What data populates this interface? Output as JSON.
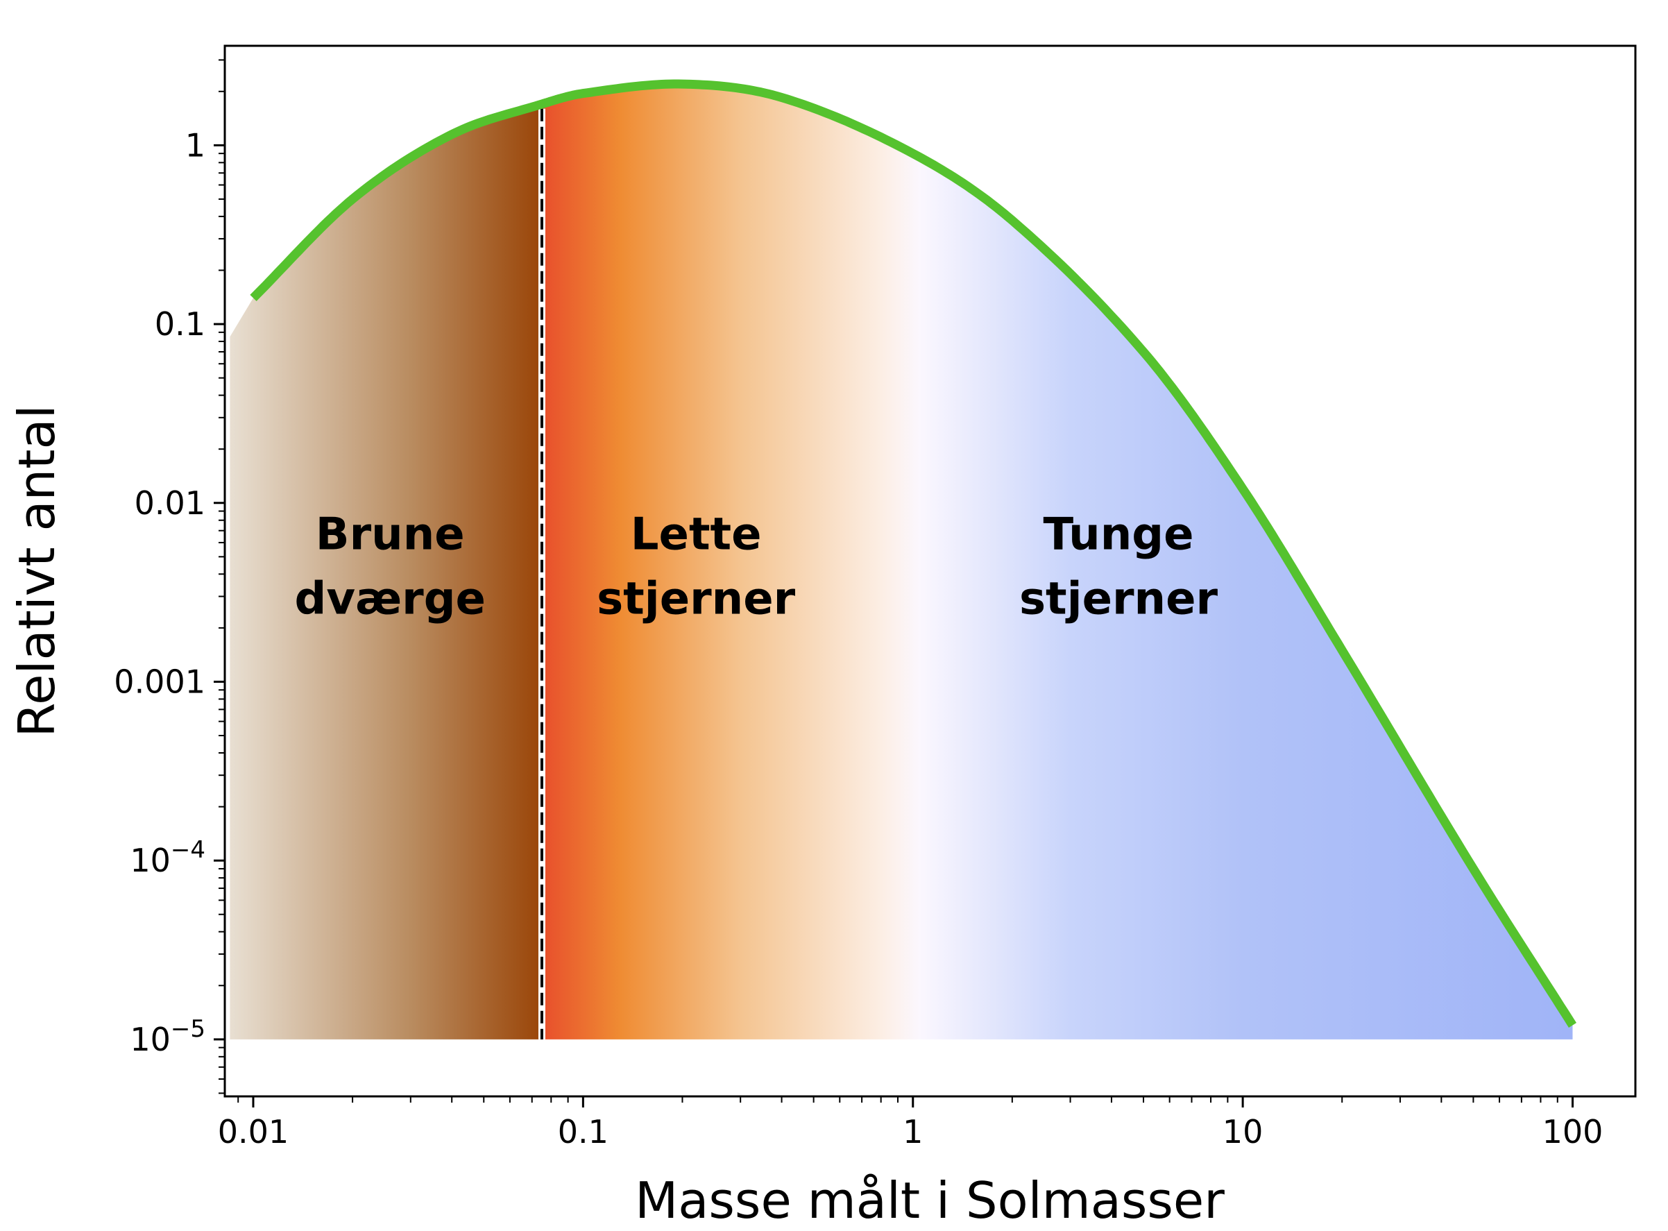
{
  "chart_data": {
    "type": "area",
    "title": "",
    "xlabel": "Masse målt i Solmasser",
    "ylabel": "Relativt antal",
    "xscale": "log",
    "yscale": "log",
    "xlim": [
      0.0082,
      155
    ],
    "ylim": [
      4.8e-06,
      3.6
    ],
    "x_ticks": [
      {
        "value": 0.01,
        "label": "0.01"
      },
      {
        "value": 0.1,
        "label": "0.1"
      },
      {
        "value": 1,
        "label": "1"
      },
      {
        "value": 10,
        "label": "10"
      },
      {
        "value": 100,
        "label": "100"
      }
    ],
    "y_ticks": [
      {
        "value": 1e-05,
        "label": "10",
        "exp": "−5"
      },
      {
        "value": 0.0001,
        "label": "10",
        "exp": "−4"
      },
      {
        "value": 0.001,
        "label": "0.001"
      },
      {
        "value": 0.01,
        "label": "0.01"
      },
      {
        "value": 0.1,
        "label": "0.1"
      },
      {
        "value": 1,
        "label": "1"
      }
    ],
    "curve": {
      "color": "#55c22e",
      "x": [
        0.01,
        0.02,
        0.04,
        0.075,
        0.1,
        0.2,
        0.4,
        1,
        2,
        5,
        10,
        20,
        50,
        100
      ],
      "y": [
        0.14,
        0.5,
        1.15,
        1.7,
        1.95,
        2.2,
        1.85,
        0.9,
        0.38,
        0.07,
        0.012,
        0.0015,
        9e-05,
        1.2e-05
      ]
    },
    "fill_start_x": 0.0085,
    "fill_start_y": 0.085,
    "fill_baseline": 1e-05,
    "boundary": {
      "x": 0.075,
      "style": "dashed"
    },
    "regions": [
      {
        "line1": "Brune",
        "line2": "dværge",
        "x": 0.026
      },
      {
        "line1": "Lette",
        "line2": "stjerner",
        "x": 0.22
      },
      {
        "line1": "Tunge",
        "line2": "stjerner",
        "x": 4.2
      }
    ],
    "region_label_y": [
      0.0055,
      0.0024
    ],
    "gradient_stops": [
      {
        "x": 0.0085,
        "color": "#e8dfd2"
      },
      {
        "x": 0.03,
        "color": "#b98c60"
      },
      {
        "x": 0.075,
        "color": "#9a4508"
      },
      {
        "x": 0.076,
        "color": "#e8502c"
      },
      {
        "x": 0.13,
        "color": "#ef8c33"
      },
      {
        "x": 0.3,
        "color": "#f4c490"
      },
      {
        "x": 0.8,
        "color": "#fceee4"
      },
      {
        "x": 1.05,
        "color": "#fbf7fe"
      },
      {
        "x": 3,
        "color": "#c8d4fb"
      },
      {
        "x": 10,
        "color": "#b1c2f8"
      },
      {
        "x": 100,
        "color": "#a0b4f7"
      }
    ]
  }
}
